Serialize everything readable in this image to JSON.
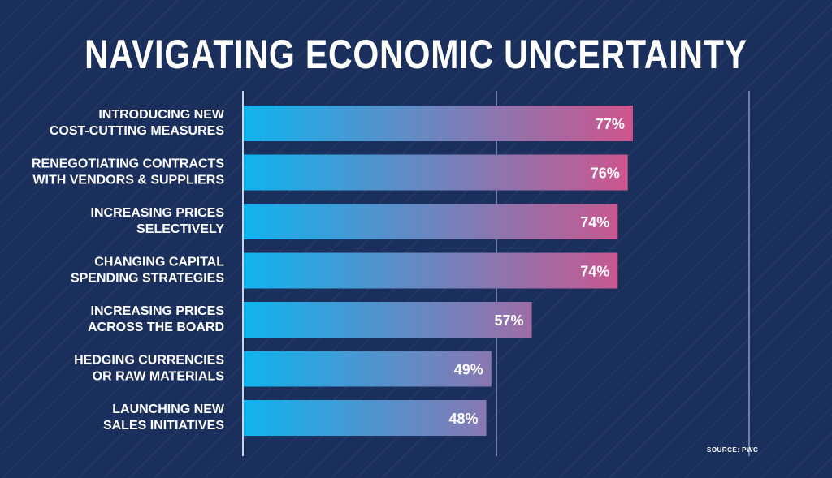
{
  "chart_data": {
    "type": "bar",
    "orientation": "horizontal",
    "title": "NAVIGATING ECONOMIC UNCERTAINTY",
    "categories": [
      [
        "INTRODUCING NEW",
        "COST-CUTTING MEASURES"
      ],
      [
        "RENEGOTIATING CONTRACTS",
        "WITH VENDORS & SUPPLIERS"
      ],
      [
        "INCREASING PRICES",
        "SELECTIVELY"
      ],
      [
        "CHANGING CAPITAL",
        "SPENDING STRATEGIES"
      ],
      [
        "INCREASING PRICES",
        "ACROSS THE BOARD"
      ],
      [
        "HEDGING CURRENCIES",
        "OR RAW MATERIALS"
      ],
      [
        "LAUNCHING NEW",
        "SALES INITIATIVES"
      ]
    ],
    "values": [
      77,
      76,
      74,
      74,
      57,
      49,
      48
    ],
    "value_labels": [
      "77%",
      "76%",
      "74%",
      "74%",
      "57%",
      "49%",
      "48%"
    ],
    "xlim": [
      0,
      100
    ],
    "gridlines": [
      50,
      100
    ],
    "colors": {
      "bar_start": "#0fb4ef",
      "bar_end": "#d0548c"
    }
  },
  "source": "SOURCE:  PWC"
}
